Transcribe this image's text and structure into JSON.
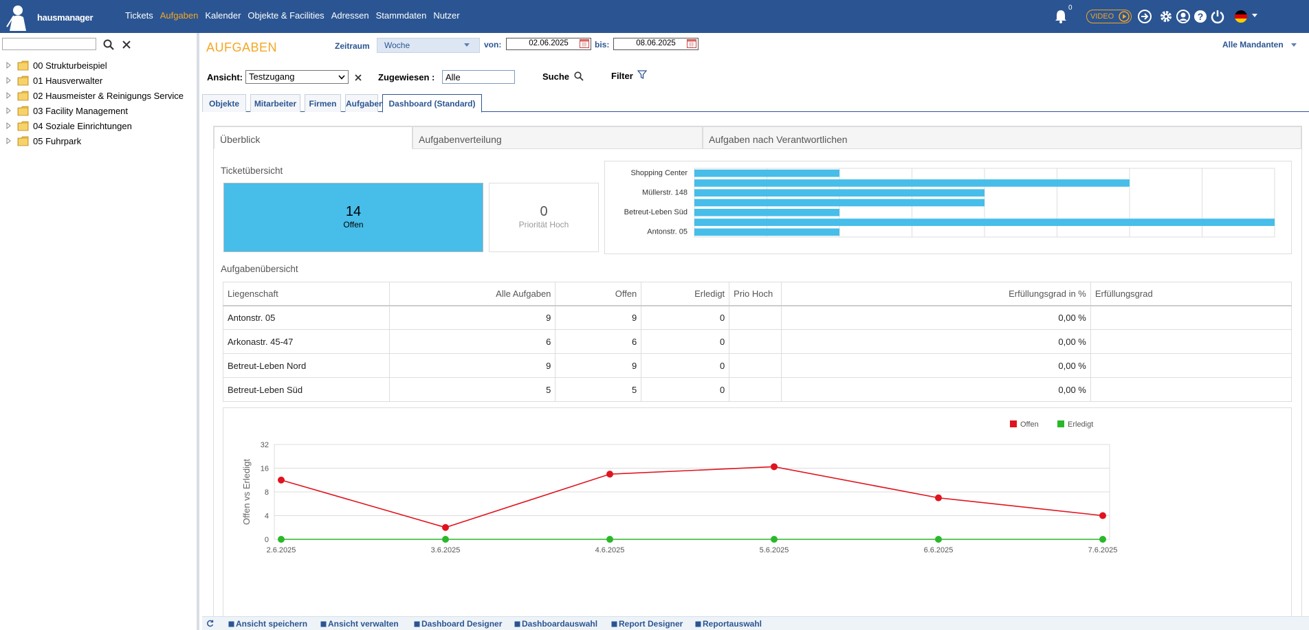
{
  "brand": {
    "name": "hausmanager"
  },
  "nav": {
    "items": [
      {
        "label": "Tickets",
        "active": false
      },
      {
        "label": "Aufgaben",
        "active": true
      },
      {
        "label": "Kalender",
        "active": false
      },
      {
        "label": "Objekte & Facilities",
        "active": false
      },
      {
        "label": "Adressen",
        "active": false
      },
      {
        "label": "Stammdaten",
        "active": false
      },
      {
        "label": "Nutzer",
        "active": false
      }
    ],
    "notification_count": "0",
    "video_label": "VIDEO"
  },
  "tree": {
    "search_value": "",
    "items": [
      "00 Strukturbeispiel",
      "01 Hausverwalter",
      "02 Hausmeister & Reinigungs Service",
      "03 Facility Management",
      "04 Soziale Einrichtungen",
      "05 Fuhrpark"
    ]
  },
  "header": {
    "title": "AUFGABEN",
    "zeitraum_label": "Zeitraum",
    "zeitraum_value": "Woche",
    "von_label": "von:",
    "von_value": "02.06.2025",
    "bis_label": "bis:",
    "bis_value": "08.06.2025",
    "mandanten": "Alle Mandanten"
  },
  "filters": {
    "ansicht_label": "Ansicht:",
    "ansicht_value": "Testzugang",
    "zugewiesen_label": "Zugewiesen :",
    "zugewiesen_value": "Alle",
    "suche_label": "Suche",
    "filter_label": "Filter"
  },
  "tabs": [
    {
      "label": "Objekte",
      "active": false
    },
    {
      "label": "Mitarbeiter",
      "active": false
    },
    {
      "label": "Firmen",
      "active": false
    },
    {
      "label": "Aufgaben",
      "active": false
    },
    {
      "label": "Dashboard (Standard)",
      "active": true
    }
  ],
  "subtabs": [
    {
      "label": "Überblick",
      "active": true
    },
    {
      "label": "Aufgabenverteilung",
      "active": false
    },
    {
      "label": "Aufgaben nach Verantwortlichen",
      "active": false
    }
  ],
  "ticket_overview": {
    "title": "Ticketübersicht",
    "offen_value": "14",
    "offen_label": "Offen",
    "prio_value": "0",
    "prio_label": "Priorität Hoch"
  },
  "task_overview": {
    "title": "Aufgabenübersicht",
    "columns": [
      "Liegenschaft",
      "Alle Aufgaben",
      "Offen",
      "Erledigt",
      "Prio Hoch",
      "Erfüllungsgrad in %",
      "Erfüllungsgrad"
    ],
    "rows": [
      [
        "Antonstr. 05",
        "9",
        "9",
        "0",
        "",
        "0,00 %",
        ""
      ],
      [
        "Arkonastr. 45-47",
        "6",
        "6",
        "0",
        "",
        "0,00 %",
        ""
      ],
      [
        "Betreut-Leben Nord",
        "9",
        "9",
        "0",
        "",
        "0,00 %",
        ""
      ],
      [
        "Betreut-Leben Süd",
        "5",
        "5",
        "0",
        "",
        "0,00 %",
        ""
      ]
    ]
  },
  "footer": {
    "buttons": [
      "Ansicht speichern",
      "Ansicht verwalten",
      "Dashboard Designer",
      "Dashboardauswahl",
      "Report Designer",
      "Reportauswahl"
    ]
  },
  "colors": {
    "topbar": "#2b5592",
    "accent": "#f5a623",
    "bar": "#47bde9",
    "offen_line": "#e0141e",
    "erledigt_line": "#2ab82a"
  },
  "chart_data": [
    {
      "type": "bar",
      "orientation": "horizontal",
      "categories": [
        "Shopping Center",
        "",
        "Müllerstr. 148",
        "",
        "Betreut-Leben Süd",
        "",
        "Antonstr. 05"
      ],
      "values": [
        3,
        9,
        6,
        6,
        3,
        12,
        3
      ],
      "xlim": [
        0,
        12
      ],
      "grid": true
    },
    {
      "type": "line",
      "x": [
        "2.6.2025",
        "3.6.2025",
        "4.6.2025",
        "5.6.2025",
        "6.6.2025",
        "7.6.2025"
      ],
      "y_ticks": [
        "0",
        "4",
        "8",
        "16",
        "32"
      ],
      "ylabel": "Offen vs Erledigt",
      "legend_position": "top-right",
      "series": [
        {
          "name": "Offen",
          "values": [
            12,
            2,
            14,
            17,
            7,
            4
          ]
        },
        {
          "name": "Erledigt",
          "values": [
            0,
            0,
            0,
            0,
            0,
            0
          ]
        }
      ]
    }
  ]
}
